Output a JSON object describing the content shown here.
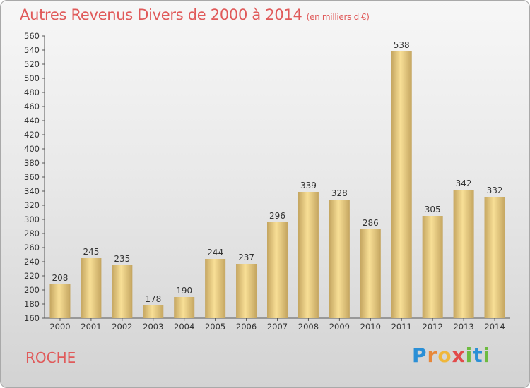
{
  "header": {
    "title": "Autres Revenus Divers de 2000 à 2014",
    "subtitle": "(en milliers d'€)"
  },
  "footer": {
    "town": "ROCHE",
    "logo": "Proxiti"
  },
  "colors": {
    "title": "#e05a5a",
    "bar_light": "#f8df96",
    "bar_dark": "#c4a560"
  },
  "chart_data": {
    "type": "bar",
    "title": "Autres Revenus Divers de 2000 à 2014",
    "subtitle": "(en milliers d'€)",
    "xlabel": "",
    "ylabel": "",
    "categories": [
      "2000",
      "2001",
      "2002",
      "2003",
      "2004",
      "2005",
      "2006",
      "2007",
      "2008",
      "2009",
      "2010",
      "2011",
      "2012",
      "2013",
      "2014"
    ],
    "values": [
      208,
      245,
      235,
      178,
      190,
      244,
      237,
      296,
      339,
      328,
      286,
      538,
      305,
      342,
      332
    ],
    "ylim": [
      160,
      560
    ],
    "ytick_step": 20,
    "grid": false,
    "legend": "none"
  }
}
